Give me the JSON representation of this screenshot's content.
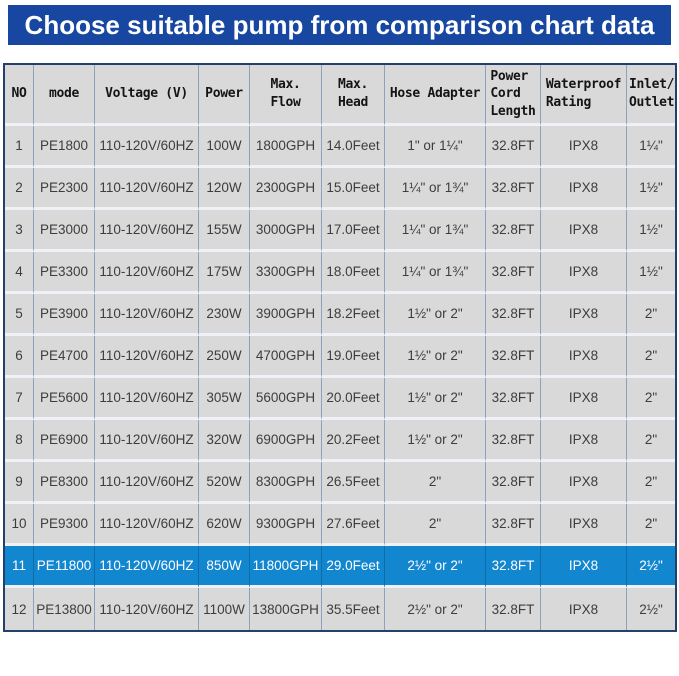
{
  "banner": {
    "title": "Choose suitable pump from comparison chart data"
  },
  "colors": {
    "banner_bg": "#1747a0",
    "highlight_bg": "#1386d0",
    "cell_bg": "#d9d9d9",
    "outer_border": "#23406b",
    "vertical_grid": "#8ca2be",
    "horizontal_grid": "#eef2f7"
  },
  "table": {
    "columns": [
      {
        "key": "no",
        "label": "NO"
      },
      {
        "key": "mode",
        "label": "mode"
      },
      {
        "key": "voltage",
        "label": "Voltage (V)"
      },
      {
        "key": "power",
        "label": "Power"
      },
      {
        "key": "flow",
        "label": "Max.\nFlow"
      },
      {
        "key": "head",
        "label": "Max.\nHead"
      },
      {
        "key": "hose",
        "label": "Hose Adapter"
      },
      {
        "key": "cord",
        "label": "Power\nCord\nLength"
      },
      {
        "key": "waterproof",
        "label": "Waterproof\nRating"
      },
      {
        "key": "inlet",
        "label": "Inlet/\nOutlet"
      }
    ],
    "rows": [
      {
        "no": "1",
        "mode": "PE1800",
        "voltage": "110-120V/60HZ",
        "power": "100W",
        "flow": "1800GPH",
        "head": "14.0Feet",
        "hose": "1\" or 1¼\"",
        "cord": "32.8FT",
        "waterproof": "IPX8",
        "inlet": "1¼\"",
        "highlighted": false
      },
      {
        "no": "2",
        "mode": "PE2300",
        "voltage": "110-120V/60HZ",
        "power": "120W",
        "flow": "2300GPH",
        "head": "15.0Feet",
        "hose": "1¼\" or 1¾\"",
        "cord": "32.8FT",
        "waterproof": "IPX8",
        "inlet": "1½\"",
        "highlighted": false
      },
      {
        "no": "3",
        "mode": "PE3000",
        "voltage": "110-120V/60HZ",
        "power": "155W",
        "flow": "3000GPH",
        "head": "17.0Feet",
        "hose": "1¼\" or 1¾\"",
        "cord": "32.8FT",
        "waterproof": "IPX8",
        "inlet": "1½\"",
        "highlighted": false
      },
      {
        "no": "4",
        "mode": "PE3300",
        "voltage": "110-120V/60HZ",
        "power": "175W",
        "flow": "3300GPH",
        "head": "18.0Feet",
        "hose": "1¼\" or 1¾\"",
        "cord": "32.8FT",
        "waterproof": "IPX8",
        "inlet": "1½\"",
        "highlighted": false
      },
      {
        "no": "5",
        "mode": "PE3900",
        "voltage": "110-120V/60HZ",
        "power": "230W",
        "flow": "3900GPH",
        "head": "18.2Feet",
        "hose": "1½\" or 2\"",
        "cord": "32.8FT",
        "waterproof": "IPX8",
        "inlet": "2\"",
        "highlighted": false
      },
      {
        "no": "6",
        "mode": "PE4700",
        "voltage": "110-120V/60HZ",
        "power": "250W",
        "flow": "4700GPH",
        "head": "19.0Feet",
        "hose": "1½\" or 2\"",
        "cord": "32.8FT",
        "waterproof": "IPX8",
        "inlet": "2\"",
        "highlighted": false
      },
      {
        "no": "7",
        "mode": "PE5600",
        "voltage": "110-120V/60HZ",
        "power": "305W",
        "flow": "5600GPH",
        "head": "20.0Feet",
        "hose": "1½\" or 2\"",
        "cord": "32.8FT",
        "waterproof": "IPX8",
        "inlet": "2\"",
        "highlighted": false
      },
      {
        "no": "8",
        "mode": "PE6900",
        "voltage": "110-120V/60HZ",
        "power": "320W",
        "flow": "6900GPH",
        "head": "20.2Feet",
        "hose": "1½\" or 2\"",
        "cord": "32.8FT",
        "waterproof": "IPX8",
        "inlet": "2\"",
        "highlighted": false
      },
      {
        "no": "9",
        "mode": "PE8300",
        "voltage": "110-120V/60HZ",
        "power": "520W",
        "flow": "8300GPH",
        "head": "26.5Feet",
        "hose": "2\"",
        "cord": "32.8FT",
        "waterproof": "IPX8",
        "inlet": "2\"",
        "highlighted": false
      },
      {
        "no": "10",
        "mode": "PE9300",
        "voltage": "110-120V/60HZ",
        "power": "620W",
        "flow": "9300GPH",
        "head": "27.6Feet",
        "hose": "2\"",
        "cord": "32.8FT",
        "waterproof": "IPX8",
        "inlet": "2\"",
        "highlighted": false
      },
      {
        "no": "11",
        "mode": "PE11800",
        "voltage": "110-120V/60HZ",
        "power": "850W",
        "flow": "11800GPH",
        "head": "29.0Feet",
        "hose": "2½\" or 2\"",
        "cord": "32.8FT",
        "waterproof": "IPX8",
        "inlet": "2½\"",
        "highlighted": true
      },
      {
        "no": "12",
        "mode": "PE13800",
        "voltage": "110-120V/60HZ",
        "power": "1100W",
        "flow": "13800GPH",
        "head": "35.5Feet",
        "hose": "2½\" or 2\"",
        "cord": "32.8FT",
        "waterproof": "IPX8",
        "inlet": "2½\"",
        "highlighted": false
      }
    ]
  }
}
